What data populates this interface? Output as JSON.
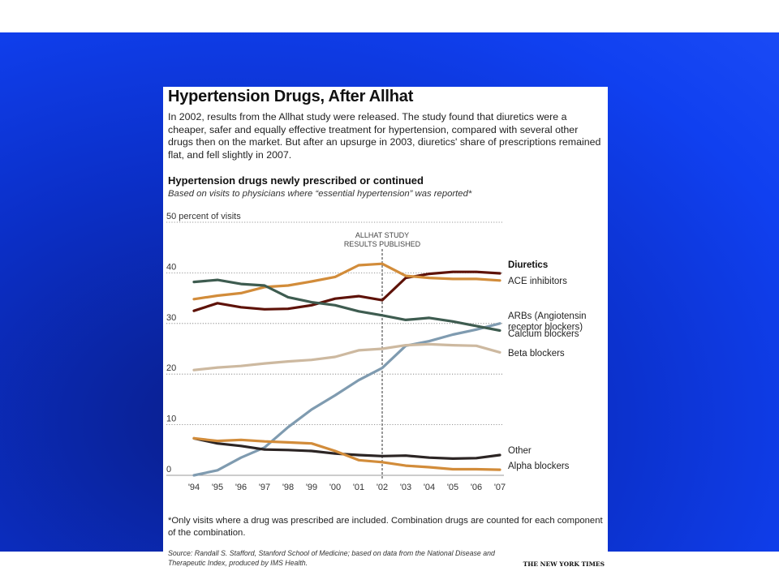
{
  "title": "Hypertension Drugs, After Allhat",
  "intro": "In 2002, results from the Allhat study were released. The study found that diuretics were a cheaper, safer and equally effective treatment for hypertension, compared with several other drugs then on the market. But after an upsurge in 2003, diuretics' share of prescriptions remained flat, and fell slightly in 2007.",
  "subtitle": "Hypertension drugs newly prescribed or continued",
  "subnote": "Based on visits to physicians where “essential hypertension” was reported*",
  "footnote": "*Only visits where a drug was prescribed are included. Combination drugs are counted for each component of the combination.",
  "source": "Source: Randall S. Stafford, Stanford School of Medicine; based on data from the National Disease and Therapeutic Index, produced by IMS Health.",
  "logo": "THE NEW YORK TIMES",
  "chart_data": {
    "type": "line",
    "x": [
      "'94",
      "'95",
      "'96",
      "'97",
      "'98",
      "'99",
      "'00",
      "'01",
      "'02",
      "'03",
      "'04",
      "'05",
      "'06",
      "'07"
    ],
    "ylim": [
      0,
      50
    ],
    "yticks": [
      "0",
      "10",
      "20",
      "30",
      "40",
      "50 percent of visits"
    ],
    "grid": true,
    "annotation": {
      "x": "'02",
      "lines": [
        "ALLHAT STUDY",
        "RESULTS PUBLISHED"
      ]
    },
    "series": [
      {
        "name": "Diuretics",
        "color": "#5e1208",
        "bold": true,
        "values": [
          32.5,
          34,
          33.2,
          32.8,
          32.9,
          33.6,
          34.9,
          35.4,
          34.6,
          39,
          39.8,
          40.2,
          40.2,
          39.9
        ]
      },
      {
        "name": "ACE inhibitors",
        "color": "#d28c3a",
        "values": [
          34.8,
          35.5,
          36,
          37.2,
          37.5,
          38.3,
          39.2,
          41.5,
          41.8,
          39.4,
          39,
          38.8,
          38.8,
          38.5
        ]
      },
      {
        "name": "ARBs (Angiotensin receptor blockers)",
        "color": "#7f9bb0",
        "values": [
          0,
          1,
          3.5,
          5.5,
          9.5,
          13,
          15.8,
          18.8,
          21.2,
          25.6,
          26.5,
          27.8,
          28.8,
          30
        ]
      },
      {
        "name": "Calcium blockers",
        "color": "#3e5c50",
        "values": [
          38.2,
          38.6,
          37.8,
          37.5,
          35.2,
          34.2,
          33.6,
          32.4,
          31.6,
          30.7,
          31.1,
          30.4,
          29.5,
          28.6
        ]
      },
      {
        "name": "Beta blockers",
        "color": "#cdb9a0",
        "values": [
          20.8,
          21.3,
          21.6,
          22.1,
          22.5,
          22.8,
          23.4,
          24.7,
          25,
          25.7,
          25.9,
          25.7,
          25.6,
          24.3
        ]
      },
      {
        "name": "Other",
        "color": "#2c2524",
        "values": [
          7.3,
          6.3,
          5.8,
          5.1,
          5,
          4.8,
          4.3,
          4,
          3.8,
          3.9,
          3.5,
          3.3,
          3.4,
          4
        ]
      },
      {
        "name": "Alpha blockers",
        "color": "#d28c3a",
        "values": [
          7.3,
          6.8,
          7,
          6.7,
          6.5,
          6.3,
          4.8,
          3,
          2.6,
          1.9,
          1.6,
          1.2,
          1.2,
          1.1
        ]
      }
    ]
  }
}
